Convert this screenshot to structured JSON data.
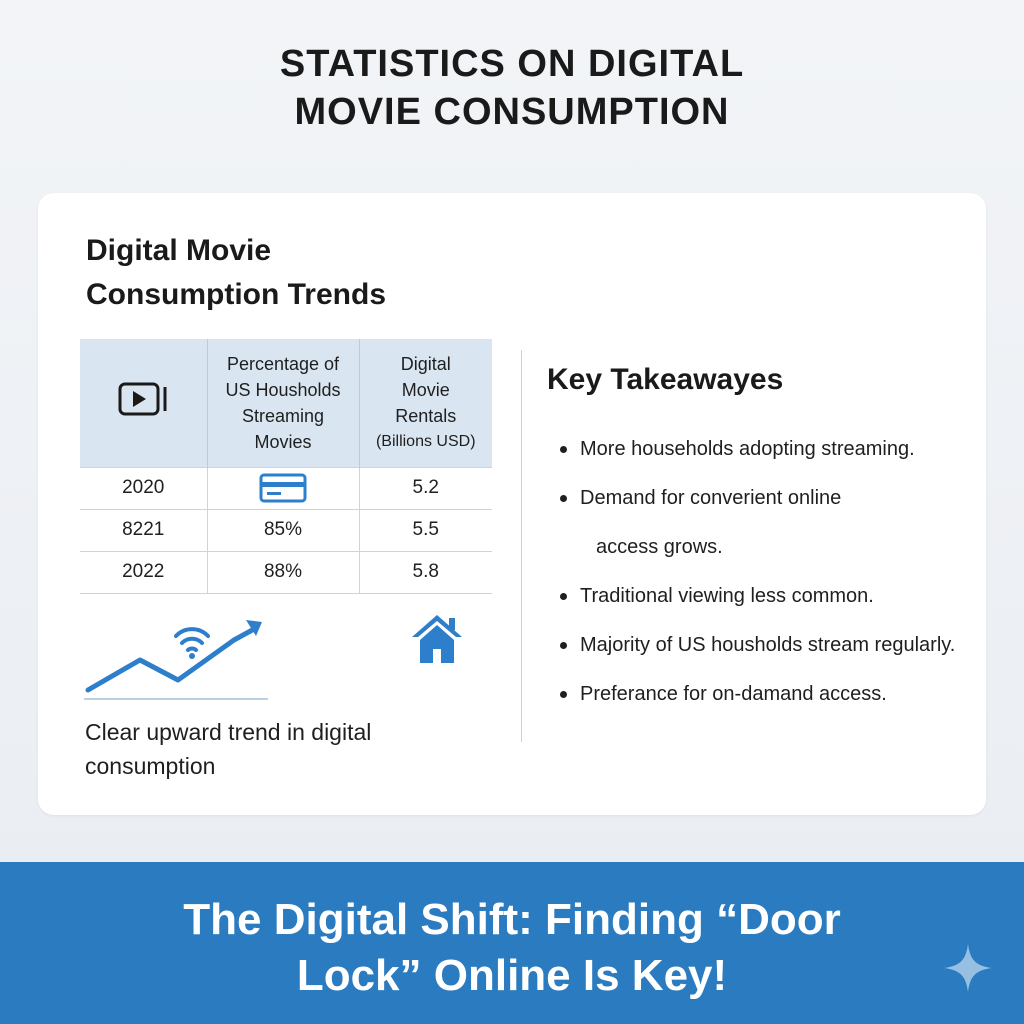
{
  "page": {
    "title_line1": "STATISTICS ON DIGITAL",
    "title_line2": "MOVIE CONSUMPTION"
  },
  "card": {
    "title_line1": "Digital Movie",
    "title_line2": "Consumption Trends",
    "table": {
      "header_icon": "video-play-icon",
      "col_pct": [
        "Percentage of",
        "US Housholds",
        "Streaming",
        "Movies"
      ],
      "col_rent": [
        "Digital",
        "Movie",
        "Rentals"
      ],
      "col_rent_unit": "(Billions USD)",
      "rows": [
        {
          "year": "2020",
          "pct": "",
          "pct_icon": "credit-card-icon",
          "rentals": "5.2"
        },
        {
          "year": "8221",
          "pct": "85%",
          "rentals": "5.5"
        },
        {
          "year": "2022",
          "pct": "88%",
          "rentals": "5.8"
        }
      ]
    },
    "trend_icon": "trend-arrow-wifi-icon",
    "house_icon": "house-icon",
    "caption_line1": "Clear upward trend in digital",
    "caption_line2": "consumption",
    "takeaways": {
      "title": "Key Takeawayes",
      "items": [
        "More households adopting streaming.",
        "Demand for converient online",
        "access grows.",
        "Traditional viewing less common.",
        "Majority of US housholds stream regularly.",
        "Preferance for on-damand access."
      ]
    }
  },
  "banner": {
    "line1": "The Digital Shift: Finding “Door",
    "line2": "Lock” Online Is Key!",
    "sparkle_icon": "sparkle-icon"
  },
  "colors": {
    "accent_blue": "#2a7bbf",
    "icon_blue": "#2d7fcb",
    "table_header_bg": "#d9e6f2",
    "page_bg": "#eef1f5"
  }
}
